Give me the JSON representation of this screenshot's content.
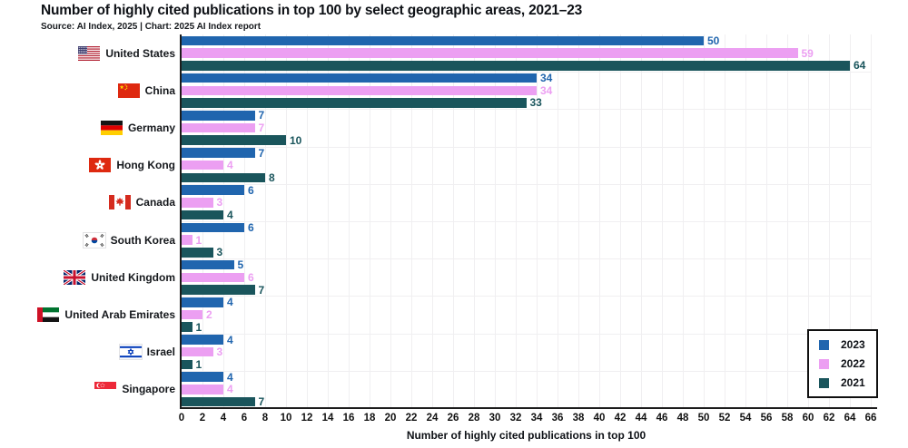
{
  "header": {
    "title": "Number of highly cited publications in top 100 by select geographic areas, 2021–23",
    "source": "Source: AI Index, 2025 | Chart: 2025 AI Index report"
  },
  "chart_data": {
    "type": "bar",
    "orientation": "horizontal",
    "title": "Number of highly cited publications in top 100 by select geographic areas, 2021–23",
    "xlabel": "Number of highly cited publications in top 100",
    "xlim": [
      0,
      66
    ],
    "xtick_step": 2,
    "grid": true,
    "legend_position": "bottom-right",
    "categories": [
      "United States",
      "China",
      "Germany",
      "Hong Kong",
      "Canada",
      "South Korea",
      "United Kingdom",
      "United Arab Emirates",
      "Israel",
      "Singapore"
    ],
    "flag_icons": [
      "us-flag-icon",
      "china-flag-icon",
      "germany-flag-icon",
      "hong-kong-flag-icon",
      "canada-flag-icon",
      "south-korea-flag-icon",
      "uk-flag-icon",
      "uae-flag-icon",
      "israel-flag-icon",
      "singapore-flag-icon"
    ],
    "series": [
      {
        "name": "2023",
        "color": "#2065ae",
        "values": [
          50,
          34,
          7,
          7,
          6,
          6,
          5,
          4,
          4,
          4
        ]
      },
      {
        "name": "2022",
        "color": "#ec9ff2",
        "values": [
          59,
          34,
          7,
          4,
          3,
          1,
          6,
          2,
          3,
          4
        ]
      },
      {
        "name": "2021",
        "color": "#1a555c",
        "values": [
          64,
          33,
          10,
          8,
          4,
          3,
          7,
          1,
          1,
          7
        ]
      }
    ]
  },
  "colors": {
    "axis": "#1c1c1c",
    "gridline": "#f0eff1",
    "text": "#15181c"
  }
}
